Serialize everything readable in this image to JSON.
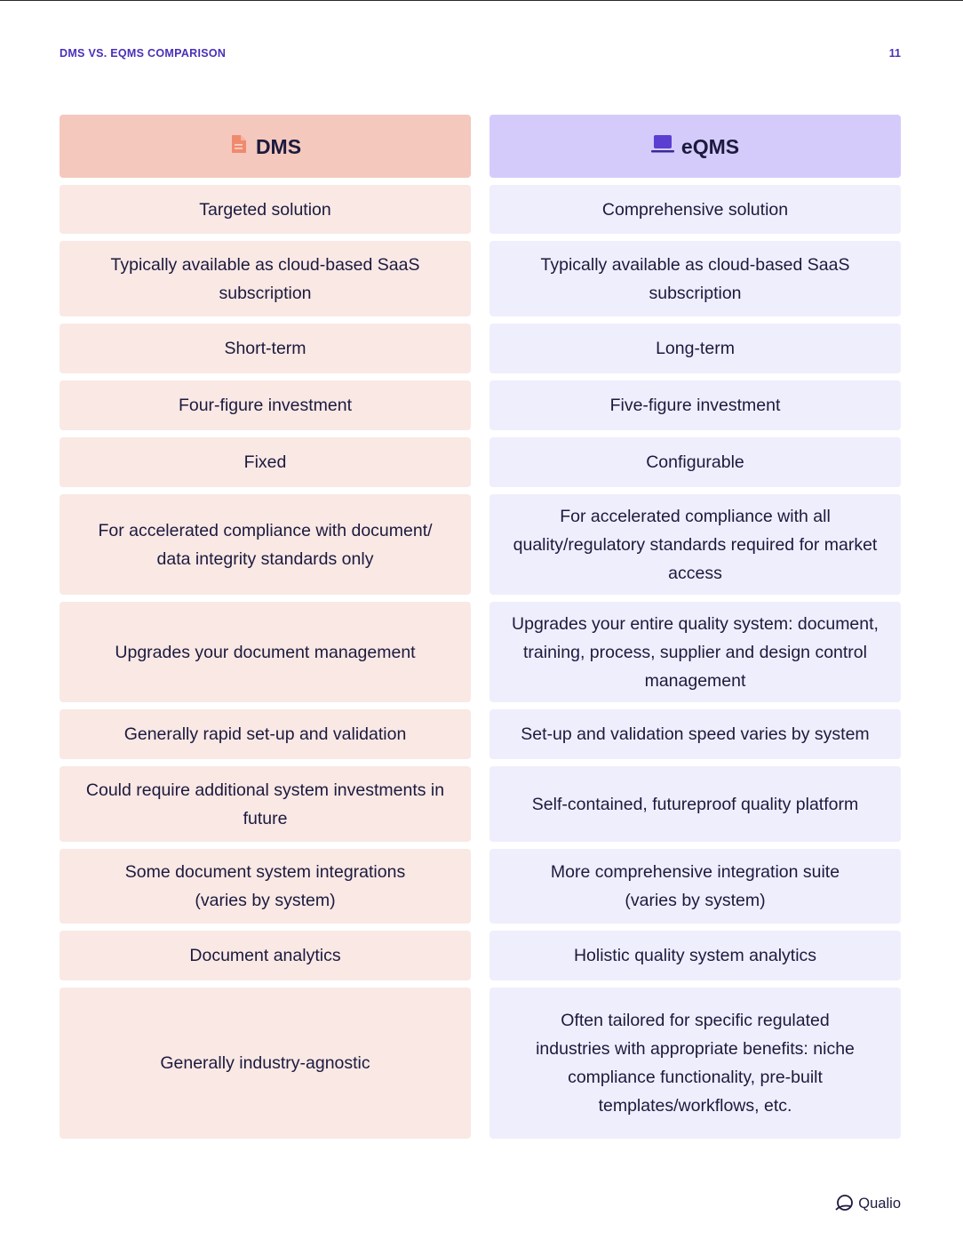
{
  "header": {
    "title": "DMS VS. EQMS COMPARISON",
    "page_number": "11"
  },
  "columns": {
    "dms": {
      "title": "DMS",
      "icon": "document-icon",
      "accent": "#f4c8bd",
      "cell_bg": "#f9e8e4"
    },
    "eqms": {
      "title": "eQMS",
      "icon": "laptop-icon",
      "accent": "#d5cbfb",
      "cell_bg": "#efeefc"
    }
  },
  "rows": [
    {
      "dms": "Targeted solution",
      "eqms": "Comprehensive solution"
    },
    {
      "dms": "Typically available as cloud-based SaaS subscription",
      "eqms": "Typically available as cloud-based SaaS subscription"
    },
    {
      "dms": "Short-term",
      "eqms": "Long-term"
    },
    {
      "dms": "Four-figure investment",
      "eqms": "Five-figure investment"
    },
    {
      "dms": "Fixed",
      "eqms": "Configurable"
    },
    {
      "dms": "For accelerated compliance with document/ data integrity standards only",
      "eqms": "For accelerated compliance with all quality/regulatory standards required for market access"
    },
    {
      "dms": "Upgrades your document management",
      "eqms": "Upgrades your entire quality system: document, training, process, supplier and design control management"
    },
    {
      "dms": "Generally rapid set-up and validation",
      "eqms": "Set-up and validation speed varies by system"
    },
    {
      "dms": "Could require additional system investments in future",
      "eqms": "Self-contained, futureproof quality platform"
    },
    {
      "dms": "Some document system integrations (varies by system)",
      "eqms": "More comprehensive integration suite (varies by system)"
    },
    {
      "dms": "Document analytics",
      "eqms": "Holistic quality system analytics"
    },
    {
      "dms": "Generally industry-agnostic",
      "eqms": "Often tailored for specific regulated industries with appropriate benefits: niche compliance functionality, pre-built templates/workflows, etc."
    }
  ],
  "footer": {
    "brand": "Qualio",
    "brand_icon": "qualio-logo-icon"
  }
}
